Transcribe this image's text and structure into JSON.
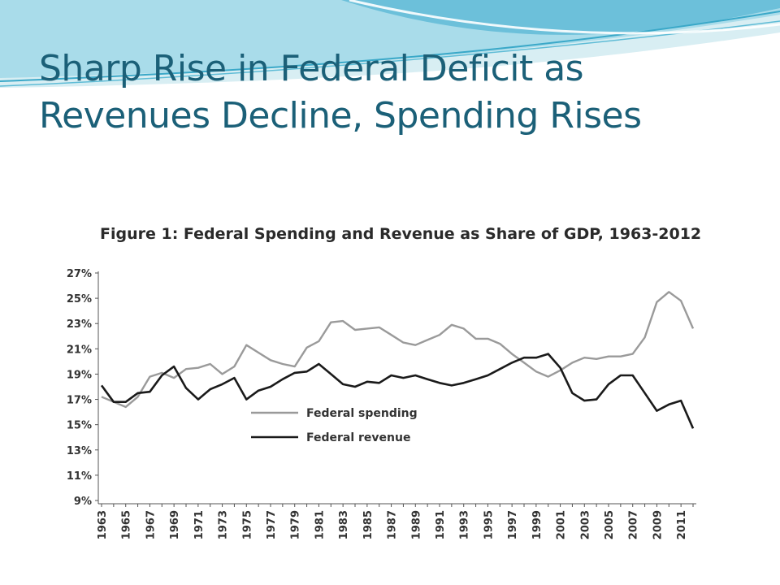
{
  "slide": {
    "title_line1": "Sharp Rise in Federal Deficit as",
    "title_line2": "Revenues Decline, Spending Rises"
  },
  "colors": {
    "title": "#1b6078",
    "spending_line": "#9a9a9a",
    "revenue_line": "#1a1a1a",
    "swoosh_light": "#d8eef3",
    "swoosh_mid": "#8fcfe0",
    "swoosh_dark": "#3aa8c8"
  },
  "chart_data": {
    "type": "line",
    "title": "Figure 1: Federal Spending and Revenue as Share of GDP, 1963-2012",
    "xlabel": "",
    "ylabel": "",
    "ylim": [
      9,
      27
    ],
    "y_ticks": [
      "9%",
      "11%",
      "13%",
      "15%",
      "17%",
      "19%",
      "21%",
      "23%",
      "25%",
      "27%"
    ],
    "x_tick_labels": [
      "1963",
      "1965",
      "1967",
      "1969",
      "1971",
      "1973",
      "1975",
      "1977",
      "1979",
      "1981",
      "1983",
      "1985",
      "1987",
      "1989",
      "1991",
      "1993",
      "1995",
      "1997",
      "1999",
      "2001",
      "2003",
      "2005",
      "2007",
      "2009",
      "2011"
    ],
    "x": [
      1963,
      1964,
      1965,
      1966,
      1967,
      1968,
      1969,
      1970,
      1971,
      1972,
      1973,
      1974,
      1975,
      1976,
      1977,
      1978,
      1979,
      1980,
      1981,
      1982,
      1983,
      1984,
      1985,
      1986,
      1987,
      1988,
      1989,
      1990,
      1991,
      1992,
      1993,
      1994,
      1995,
      1996,
      1997,
      1998,
      1999,
      2000,
      2001,
      2002,
      2003,
      2004,
      2005,
      2006,
      2007,
      2008,
      2009,
      2010,
      2011,
      2012
    ],
    "grid": false,
    "legend_position": "inside-lower-left",
    "series": [
      {
        "name": "Federal spending",
        "color": "#9a9a9a",
        "values": [
          17.2,
          16.8,
          16.4,
          17.2,
          18.8,
          19.1,
          18.7,
          19.4,
          19.5,
          19.8,
          19.0,
          19.6,
          21.3,
          20.7,
          20.1,
          19.8,
          19.6,
          21.1,
          21.6,
          23.1,
          23.2,
          22.5,
          22.6,
          22.7,
          22.1,
          21.5,
          21.3,
          21.7,
          22.1,
          22.9,
          22.6,
          21.8,
          21.8,
          21.4,
          20.6,
          19.9,
          19.2,
          18.8,
          19.3,
          19.9,
          20.3,
          20.2,
          20.4,
          20.4,
          20.6,
          21.9,
          24.7,
          25.5,
          24.8,
          22.6
        ]
      },
      {
        "name": "Federal revenue",
        "color": "#1a1a1a",
        "values": [
          18.1,
          16.8,
          16.8,
          17.5,
          17.6,
          18.9,
          19.6,
          17.9,
          17.0,
          17.8,
          18.2,
          18.7,
          17.0,
          17.7,
          18.0,
          18.6,
          19.1,
          19.2,
          19.8,
          19.0,
          18.2,
          18.0,
          18.4,
          18.3,
          18.9,
          18.7,
          18.9,
          18.6,
          18.3,
          18.1,
          18.3,
          18.6,
          18.9,
          19.4,
          19.9,
          20.3,
          20.3,
          20.6,
          19.5,
          17.5,
          16.9,
          17.0,
          18.2,
          18.9,
          18.9,
          17.5,
          16.1,
          16.6,
          16.9,
          14.7
        ]
      }
    ]
  }
}
